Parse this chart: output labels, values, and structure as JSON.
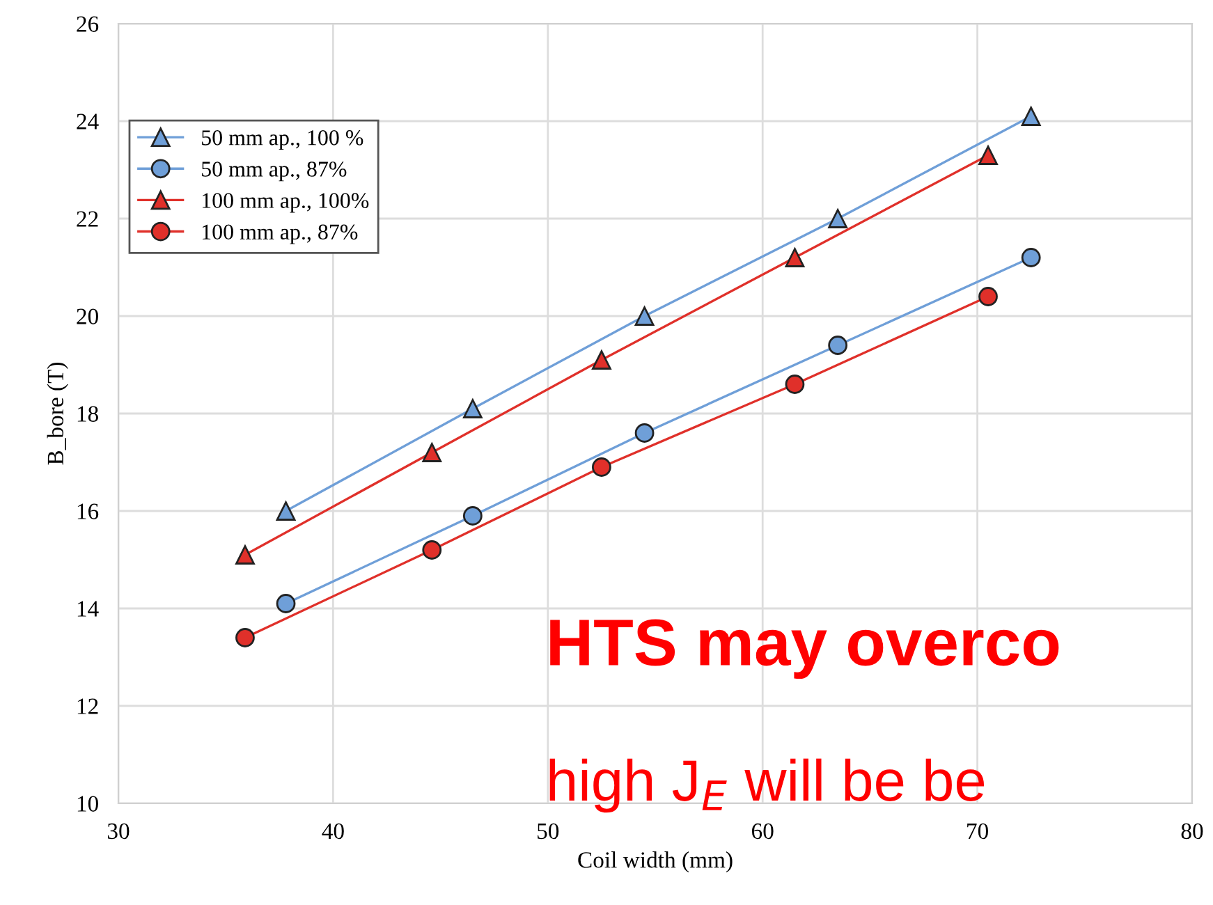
{
  "chart_data": {
    "type": "line",
    "xlabel": "Coil width (mm)",
    "ylabel": "B_bore (T)",
    "xlim": [
      30,
      80
    ],
    "xticks": [
      30,
      40,
      50,
      60,
      70,
      80
    ],
    "ylim": [
      10,
      26
    ],
    "yticks": [
      10,
      12,
      14,
      16,
      18,
      20,
      22,
      24,
      26
    ],
    "grid": true,
    "legend": "top left",
    "series": [
      {
        "name": "50 mm ap., 100 %",
        "color": "#6f9fd8",
        "marker": "triangle",
        "x": [
          37.8,
          46.5,
          54.5,
          63.5,
          72.5
        ],
        "values": [
          16.0,
          18.1,
          20.0,
          22.0,
          24.1
        ]
      },
      {
        "name": "50 mm ap., 87%",
        "color": "#6f9fd8",
        "marker": "circle",
        "x": [
          37.8,
          46.5,
          54.5,
          63.5,
          72.5
        ],
        "values": [
          14.1,
          15.9,
          17.6,
          19.4,
          21.2
        ]
      },
      {
        "name": "100 mm ap., 100%",
        "color": "#e0302a",
        "marker": "triangle",
        "x": [
          35.9,
          44.6,
          52.5,
          61.5,
          70.5
        ],
        "values": [
          15.1,
          17.2,
          19.1,
          21.2,
          23.3
        ]
      },
      {
        "name": "100 mm ap., 87%",
        "color": "#e0302a",
        "marker": "circle",
        "x": [
          35.9,
          44.6,
          52.5,
          61.5,
          70.5
        ],
        "values": [
          13.4,
          15.2,
          16.9,
          18.6,
          20.4
        ]
      }
    ],
    "annotations": [
      "HTS may overco",
      "high J$_{E}$ will be be"
    ]
  }
}
